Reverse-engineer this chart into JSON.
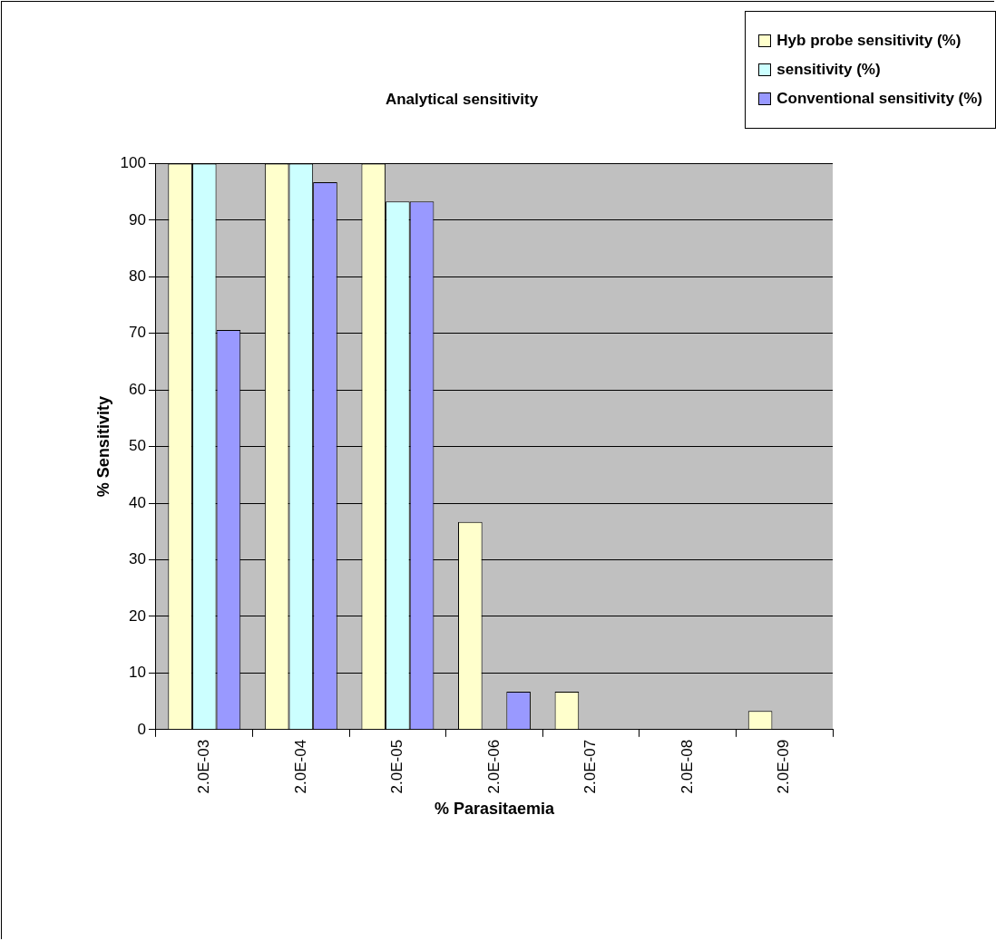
{
  "chart_data": {
    "type": "bar",
    "title": "Analytical sensitivity",
    "xlabel": "% Parasitaemia",
    "ylabel": "% Sensitivity",
    "categories": [
      "2.0E-03",
      "2.0E-04",
      "2.0E-05",
      "2.0E-06",
      "2.0E-07",
      "2.0E-08",
      "2.0E-09"
    ],
    "series": [
      {
        "name": "Hyb probe sensitivity (%)",
        "color": "#ffffcc",
        "values": [
          100,
          100,
          100,
          36.7,
          6.7,
          0,
          3.3
        ]
      },
      {
        "name": "sensitivity (%)",
        "color": "#ccffff",
        "values": [
          100,
          100,
          93.3,
          0,
          0,
          0,
          0
        ]
      },
      {
        "name": "Conventional sensitivity (%)",
        "color": "#9999ff",
        "values": [
          70.6,
          96.7,
          93.3,
          6.7,
          0,
          0,
          0
        ]
      }
    ],
    "ylim": [
      0,
      100
    ],
    "yticks": [
      0,
      10,
      20,
      30,
      40,
      50,
      60,
      70,
      80,
      90,
      100
    ],
    "grid": "y",
    "legend": "top right"
  }
}
